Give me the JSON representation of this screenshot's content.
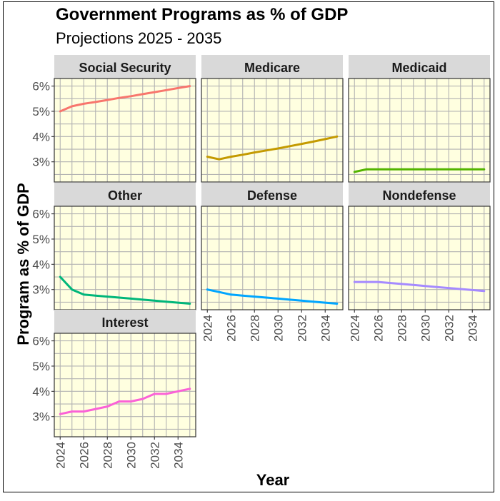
{
  "chart_data": {
    "type": "line",
    "title": "Government Programs as % of GDP",
    "subtitle": "Projections 2025 - 2035",
    "xlabel": "Year",
    "ylabel": "Program as % of GDP",
    "xlim": [
      2023.5,
      2035.5
    ],
    "ylim": [
      2.2,
      6.3
    ],
    "x_ticks": [
      2024,
      2026,
      2028,
      2030,
      2032,
      2034
    ],
    "x_tick_labels": [
      "2024",
      "2026",
      "2028",
      "2030",
      "2032",
      "2034"
    ],
    "y_ticks": [
      3,
      4,
      5,
      6
    ],
    "y_tick_labels": [
      "3%",
      "4%",
      "5%",
      "6%"
    ],
    "grid": true,
    "panel_background": "#ffffe0",
    "strip_background": "#d9d9d9",
    "grid_color": "#b3b3b3",
    "x": [
      2024,
      2025,
      2026,
      2027,
      2028,
      2029,
      2030,
      2031,
      2032,
      2033,
      2034,
      2035
    ],
    "series": [
      {
        "name": "Social Security",
        "color": "#f8766d",
        "values": [
          5.0,
          5.2,
          5.3,
          5.37,
          5.45,
          5.53,
          5.6,
          5.68,
          5.76,
          5.84,
          5.92,
          6.0
        ]
      },
      {
        "name": "Medicare",
        "color": "#c49a00",
        "values": [
          3.2,
          3.1,
          3.2,
          3.28,
          3.37,
          3.45,
          3.53,
          3.62,
          3.71,
          3.8,
          3.9,
          4.0
        ]
      },
      {
        "name": "Medicaid",
        "color": "#53b400",
        "values": [
          2.6,
          2.7,
          2.7,
          2.7,
          2.7,
          2.7,
          2.7,
          2.7,
          2.7,
          2.7,
          2.7,
          2.7
        ]
      },
      {
        "name": "Other",
        "color": "#00b67a",
        "values": [
          3.5,
          3.0,
          2.8,
          2.76,
          2.72,
          2.68,
          2.64,
          2.6,
          2.56,
          2.52,
          2.48,
          2.44
        ]
      },
      {
        "name": "Defense",
        "color": "#00a6ff",
        "values": [
          3.0,
          2.9,
          2.8,
          2.76,
          2.72,
          2.68,
          2.64,
          2.6,
          2.56,
          2.52,
          2.48,
          2.44
        ]
      },
      {
        "name": "Nondefense",
        "color": "#a58aff",
        "values": [
          3.3,
          3.3,
          3.3,
          3.26,
          3.22,
          3.18,
          3.14,
          3.1,
          3.06,
          3.02,
          2.98,
          2.94
        ]
      },
      {
        "name": "Interest",
        "color": "#fb61d7",
        "values": [
          3.1,
          3.2,
          3.2,
          3.3,
          3.4,
          3.6,
          3.6,
          3.7,
          3.9,
          3.9,
          4.0,
          4.1
        ]
      }
    ]
  }
}
